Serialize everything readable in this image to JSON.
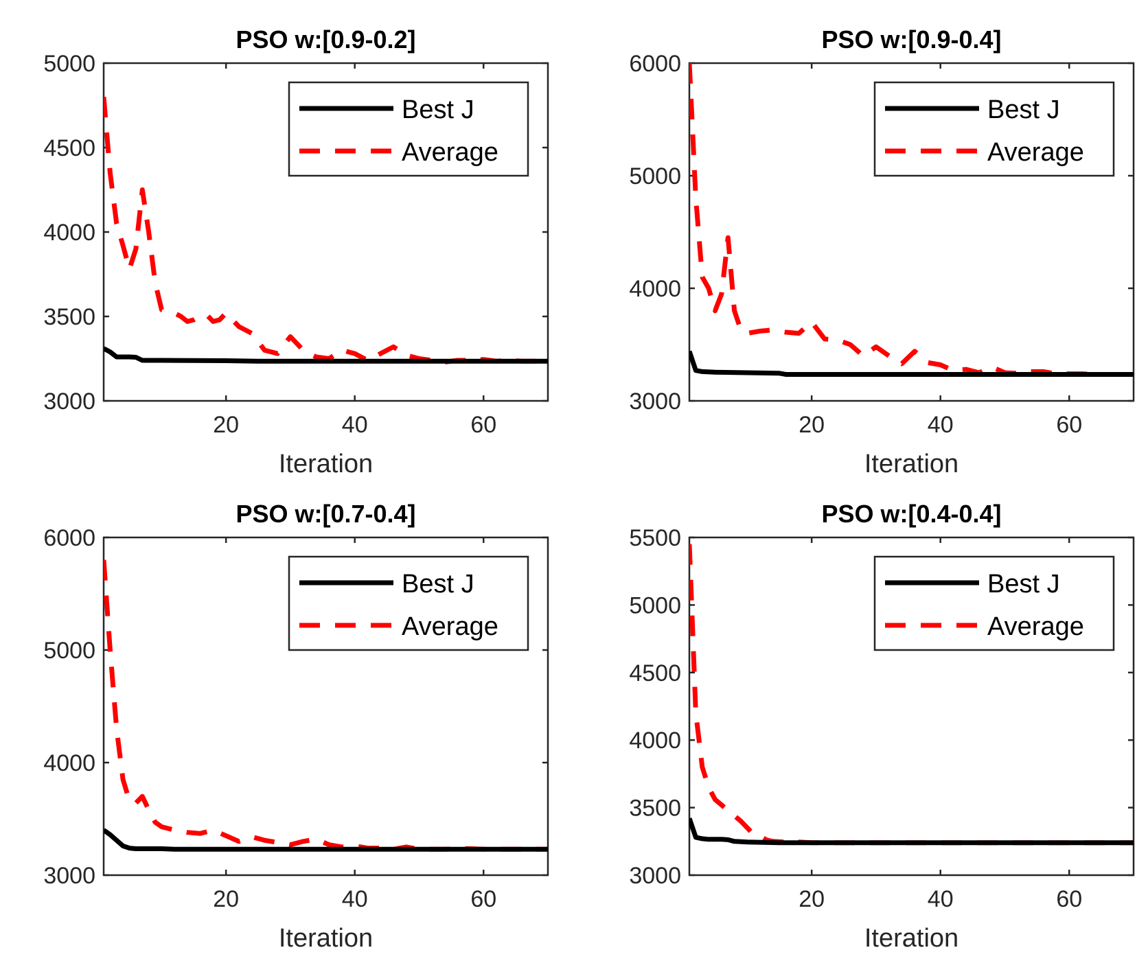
{
  "colors": {
    "best": "#000000",
    "average": "#ff0000",
    "axis": "#262626"
  },
  "chart_data": [
    {
      "type": "line",
      "title": "PSO w:[0.9-0.2]",
      "xlabel": "Iteration",
      "ylabel": "",
      "xlim": [
        1,
        70
      ],
      "ylim": [
        3000,
        5000
      ],
      "xticks": [
        20,
        40,
        60
      ],
      "yticks": [
        3000,
        3500,
        4000,
        4500,
        5000
      ],
      "legend": {
        "position": "top-right",
        "entries": [
          "Best J",
          "Average"
        ]
      },
      "series": [
        {
          "name": "Best J",
          "style": "solid",
          "x": [
            1,
            2,
            3,
            4,
            5,
            6,
            7,
            8,
            10,
            20,
            25,
            40,
            50,
            70
          ],
          "y": [
            3310,
            3290,
            3260,
            3260,
            3260,
            3258,
            3240,
            3240,
            3240,
            3238,
            3235,
            3235,
            3235,
            3235
          ]
        },
        {
          "name": "Average",
          "style": "dashed",
          "x": [
            1,
            2,
            3,
            4,
            5,
            6,
            7,
            8,
            9,
            10,
            11,
            12,
            13,
            14,
            15,
            16,
            17,
            18,
            19,
            20,
            22,
            24,
            26,
            28,
            30,
            32,
            34,
            36,
            38,
            40,
            42,
            44,
            46,
            48,
            50,
            52,
            54,
            56,
            58,
            60,
            62,
            64,
            66,
            68,
            70
          ],
          "y": [
            4800,
            4350,
            4050,
            3920,
            3780,
            3900,
            4250,
            4000,
            3700,
            3540,
            3530,
            3520,
            3500,
            3470,
            3480,
            3500,
            3510,
            3470,
            3480,
            3520,
            3440,
            3400,
            3300,
            3280,
            3380,
            3300,
            3260,
            3250,
            3300,
            3280,
            3240,
            3280,
            3320,
            3270,
            3250,
            3240,
            3230,
            3240,
            3240,
            3245,
            3235,
            3240,
            3235,
            3235,
            3235
          ]
        }
      ]
    },
    {
      "type": "line",
      "title": "PSO w:[0.9-0.4]",
      "xlabel": "Iteration",
      "ylabel": "",
      "xlim": [
        1,
        70
      ],
      "ylim": [
        3000,
        6000
      ],
      "xticks": [
        20,
        40,
        60
      ],
      "yticks": [
        3000,
        4000,
        5000,
        6000
      ],
      "legend": {
        "position": "top-right",
        "entries": [
          "Best J",
          "Average"
        ]
      },
      "series": [
        {
          "name": "Best J",
          "style": "solid",
          "x": [
            1,
            2,
            3,
            5,
            10,
            15,
            16,
            20,
            30,
            40,
            50,
            70
          ],
          "y": [
            3440,
            3270,
            3260,
            3255,
            3250,
            3245,
            3235,
            3235,
            3235,
            3235,
            3235,
            3235
          ]
        },
        {
          "name": "Average",
          "style": "dashed",
          "x": [
            1,
            2,
            3,
            4,
            5,
            6,
            7,
            8,
            9,
            10,
            12,
            14,
            16,
            18,
            20,
            22,
            24,
            26,
            28,
            30,
            32,
            34,
            36,
            38,
            40,
            42,
            44,
            46,
            48,
            50,
            52,
            54,
            56,
            58,
            60,
            62,
            64,
            66,
            68,
            70
          ],
          "y": [
            6000,
            4800,
            4100,
            4000,
            3800,
            3950,
            4450,
            3800,
            3630,
            3600,
            3620,
            3630,
            3610,
            3600,
            3700,
            3550,
            3540,
            3500,
            3400,
            3480,
            3400,
            3330,
            3440,
            3340,
            3320,
            3270,
            3280,
            3250,
            3300,
            3250,
            3245,
            3260,
            3260,
            3240,
            3240,
            3240,
            3235,
            3235,
            3235,
            3235
          ]
        }
      ]
    },
    {
      "type": "line",
      "title": "PSO w:[0.7-0.4]",
      "xlabel": "Iteration",
      "ylabel": "",
      "xlim": [
        1,
        70
      ],
      "ylim": [
        3000,
        6000
      ],
      "xticks": [
        20,
        40,
        60
      ],
      "yticks": [
        3000,
        4000,
        5000,
        6000
      ],
      "legend": {
        "position": "top-right",
        "entries": [
          "Best J",
          "Average"
        ]
      },
      "series": [
        {
          "name": "Best J",
          "style": "solid",
          "x": [
            1,
            2,
            3,
            4,
            5,
            6,
            8,
            10,
            12,
            20,
            30,
            40,
            50,
            70
          ],
          "y": [
            3400,
            3360,
            3310,
            3260,
            3240,
            3235,
            3235,
            3235,
            3230,
            3230,
            3230,
            3230,
            3230,
            3230
          ]
        },
        {
          "name": "Average",
          "style": "dashed",
          "x": [
            1,
            2,
            3,
            4,
            5,
            6,
            7,
            8,
            9,
            10,
            12,
            14,
            16,
            18,
            20,
            22,
            24,
            26,
            28,
            30,
            32,
            34,
            36,
            38,
            40,
            42,
            44,
            46,
            48,
            50,
            52,
            54,
            56,
            58,
            60,
            62,
            64,
            66,
            68,
            70
          ],
          "y": [
            5800,
            5000,
            4300,
            3850,
            3660,
            3640,
            3700,
            3580,
            3470,
            3430,
            3400,
            3380,
            3370,
            3400,
            3350,
            3300,
            3340,
            3310,
            3290,
            3270,
            3300,
            3320,
            3270,
            3250,
            3260,
            3240,
            3240,
            3230,
            3250,
            3230,
            3230,
            3230,
            3235,
            3235,
            3230,
            3230,
            3230,
            3230,
            3230,
            3230
          ]
        }
      ]
    },
    {
      "type": "line",
      "title": "PSO w:[0.4-0.4]",
      "xlabel": "Iteration",
      "ylabel": "",
      "xlim": [
        1,
        70
      ],
      "ylim": [
        3000,
        5500
      ],
      "xticks": [
        20,
        40,
        60
      ],
      "yticks": [
        3000,
        3500,
        4000,
        4500,
        5000,
        5500
      ],
      "legend": {
        "position": "top-right",
        "entries": [
          "Best J",
          "Average"
        ]
      },
      "series": [
        {
          "name": "Best J",
          "style": "solid",
          "x": [
            1,
            2,
            3,
            4,
            5,
            6,
            7,
            8,
            10,
            15,
            20,
            30,
            40,
            50,
            70
          ],
          "y": [
            3420,
            3280,
            3270,
            3265,
            3265,
            3265,
            3262,
            3250,
            3245,
            3240,
            3240,
            3240,
            3240,
            3240,
            3240
          ]
        },
        {
          "name": "Average",
          "style": "dashed",
          "x": [
            1,
            2,
            3,
            4,
            5,
            6,
            7,
            8,
            9,
            10,
            11,
            12,
            13,
            14,
            16,
            18,
            20,
            25,
            30,
            40,
            50,
            60,
            70
          ],
          "y": [
            5450,
            4200,
            3800,
            3650,
            3560,
            3520,
            3480,
            3440,
            3400,
            3350,
            3300,
            3290,
            3260,
            3250,
            3245,
            3245,
            3240,
            3240,
            3240,
            3240,
            3240,
            3240,
            3240
          ]
        }
      ]
    }
  ]
}
